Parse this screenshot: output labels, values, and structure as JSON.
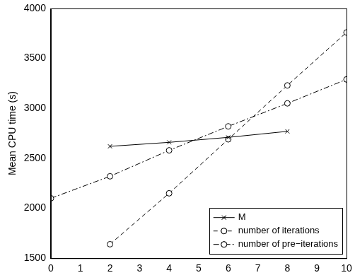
{
  "chart_data": {
    "type": "line",
    "y_label": "Mean CPU time (s)",
    "xlim": [
      0,
      10
    ],
    "xticks": [
      0,
      1,
      2,
      3,
      4,
      5,
      6,
      7,
      8,
      9,
      10
    ],
    "ylim": [
      1500,
      4000
    ],
    "yticks": [
      1500,
      2000,
      2500,
      3000,
      3500,
      4000
    ],
    "grid": false,
    "legend": "lower right",
    "series": [
      {
        "name": "M",
        "color": "#000000",
        "marker": "x",
        "line_style": "solid",
        "x": [
          2,
          4,
          6,
          8
        ],
        "values": [
          2620,
          2660,
          2710,
          2770
        ]
      },
      {
        "name": "number of iterations",
        "color": "#000000",
        "marker": "circle",
        "line_style": "dashed",
        "x": [
          2,
          4,
          6,
          8,
          10
        ],
        "values": [
          1640,
          2150,
          2690,
          3230,
          3760
        ]
      },
      {
        "name": "number of pre−iterations",
        "color": "#000000",
        "marker": "circle",
        "line_style": "dashdot",
        "x": [
          0,
          2,
          4,
          6,
          8,
          10
        ],
        "values": [
          2100,
          2320,
          2580,
          2820,
          3050,
          3290
        ]
      }
    ]
  }
}
